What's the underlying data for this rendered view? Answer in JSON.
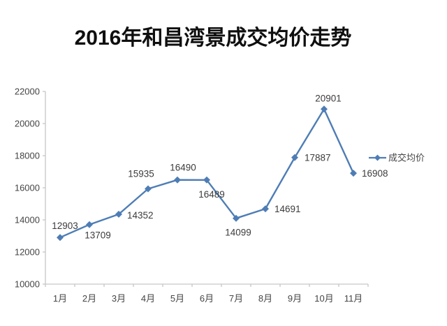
{
  "title": "2016年和昌湾景成交均价走势",
  "legend": {
    "label": "成交均价"
  },
  "colors": {
    "line": "#4e7db5",
    "marker": "#4e7db5",
    "axis_line": "#c6c6c6",
    "axis_text": "#454545",
    "data_label": "#3b3b3b",
    "title_text": "#0f0f0f",
    "background": "#ffffff"
  },
  "chart_data": {
    "type": "line",
    "title": "2016年和昌湾景成交均价走势",
    "categories": [
      "1月",
      "2月",
      "3月",
      "4月",
      "5月",
      "6月",
      "7月",
      "8月",
      "9月",
      "10月",
      "11月"
    ],
    "series": [
      {
        "name": "成交均价",
        "values": [
          12903,
          13709,
          14352,
          15935,
          16490,
          16489,
          14099,
          14691,
          17887,
          20901,
          16908
        ]
      }
    ],
    "xlabel": "",
    "ylabel": "",
    "ylim": [
      10000,
      22000
    ],
    "yticks": [
      10000,
      12000,
      14000,
      16000,
      18000,
      20000,
      22000
    ],
    "grid": false,
    "show_data_labels": true,
    "marker_shape": "diamond",
    "legend_position": "right-middle"
  }
}
